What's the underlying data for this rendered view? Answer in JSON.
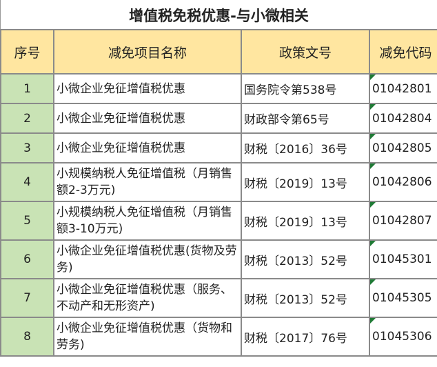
{
  "title": "增值税免税优惠-与小微相关",
  "columns": [
    "序号",
    "减免项目名称",
    "政策文号",
    "减免代码"
  ],
  "colors": {
    "header_bg": "#ffe6a0",
    "seq_bg": "#c9e3b5",
    "indicator": "#1f7a35"
  },
  "rows": [
    {
      "seq": "1",
      "name": "小微企业免征增值税优惠",
      "doc": "国务院令第538号",
      "code": "01042801"
    },
    {
      "seq": "2",
      "name": "小微企业免征增值税优惠",
      "doc": "财政部令第65号",
      "code": "01042804"
    },
    {
      "seq": "3",
      "name": "小微企业免征增值税优惠",
      "doc": "财税〔2016〕36号",
      "code": "01042805"
    },
    {
      "seq": "4",
      "name": "小规模纳税人免征增值税（月销售额2-3万元)",
      "doc": "财税〔2019〕13号",
      "code": "01042806"
    },
    {
      "seq": "5",
      "name": "小规模纳税人免征增值税（月销售额3-10万元)",
      "doc": "财税〔2019〕13号",
      "code": "01042807"
    },
    {
      "seq": "6",
      "name": "小微企业免征增值税优惠(货物及劳务)",
      "doc": "财税〔2013〕52号",
      "code": "01045301"
    },
    {
      "seq": "7",
      "name": "小微企业免征增值税优惠（服务、不动产和无形资产)",
      "doc": " 财税〔2013〕52号",
      "code": "01045305"
    },
    {
      "seq": "8",
      "name": "小微企业免征增值税优惠（货物和劳务)",
      "doc": "财税〔2017〕76号",
      "code": "01045306"
    }
  ]
}
